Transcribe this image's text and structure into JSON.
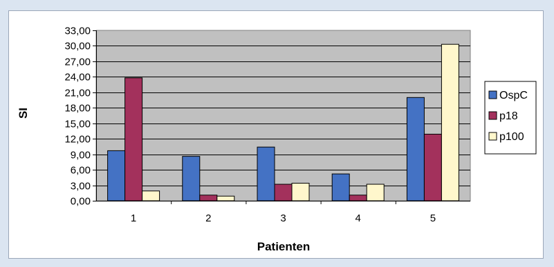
{
  "caption": "",
  "colors": {
    "page_background": "#dbe5f1",
    "plot_background": "#c0c0c0",
    "OspC": "#4472c4",
    "p18": "#a3315c",
    "p100": "#fff7cc"
  },
  "chart_data": {
    "type": "bar",
    "categories": [
      "1",
      "2",
      "3",
      "4",
      "5"
    ],
    "series": [
      {
        "name": "OspC",
        "values": [
          9.7,
          8.6,
          10.4,
          5.2,
          20.0
        ]
      },
      {
        "name": "p18",
        "values": [
          23.8,
          1.1,
          3.2,
          1.1,
          12.9
        ]
      },
      {
        "name": "p100",
        "values": [
          1.9,
          0.9,
          3.4,
          3.2,
          30.3
        ]
      }
    ],
    "xlabel": "Patienten",
    "ylabel": "SI",
    "ylim": [
      0,
      33
    ],
    "yticks": [
      "0,00",
      "3,00",
      "6,00",
      "9,00",
      "12,00",
      "15,00",
      "18,00",
      "21,00",
      "24,00",
      "27,00",
      "30,00",
      "33,00"
    ],
    "grid": true,
    "legend_position": "right"
  }
}
